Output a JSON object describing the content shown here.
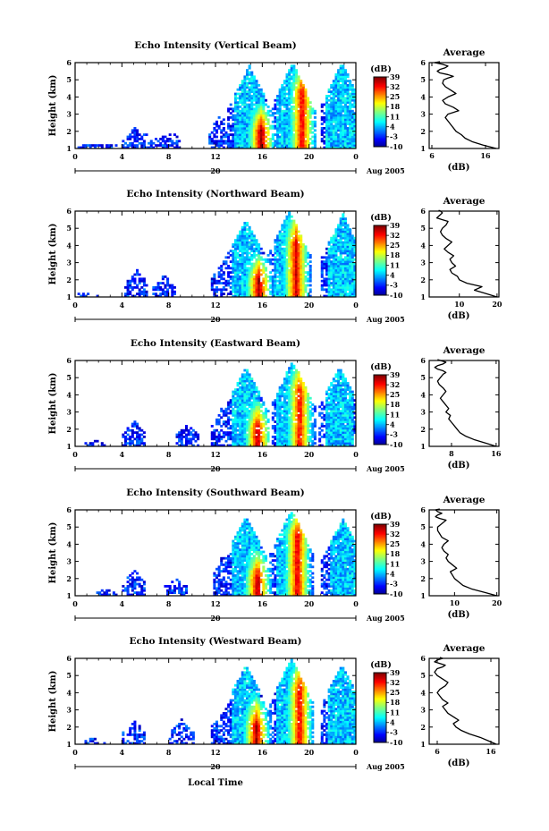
{
  "figure": {
    "xlabel": "Local Time",
    "date_label": "Aug 2005",
    "day_label": "20",
    "time_ticks": [
      "0",
      "4",
      "8",
      "12",
      "16",
      "20",
      "0"
    ],
    "height_ticks": [
      "1",
      "2",
      "3",
      "4",
      "5",
      "6"
    ],
    "ylabel": "Height (km)",
    "cbar_unit": "(dB)",
    "cbar_ticks": [
      "-10",
      "-3",
      "4",
      "11",
      "18",
      "25",
      "32",
      "39"
    ],
    "avg_title": "Average",
    "avg_xlabel": "(dB)"
  },
  "chart_data": [
    {
      "type": "heatmap",
      "title": "Echo Intensity (Vertical Beam)",
      "xlim": [
        0,
        24
      ],
      "ylim": [
        1,
        6
      ],
      "clim": [
        -10,
        39
      ],
      "bursts": [
        [
          0.5,
          1.25
        ],
        [
          2.5,
          1.25
        ],
        [
          5.0,
          2.2
        ],
        [
          6.0,
          1.9
        ],
        [
          8.0,
          2.0
        ],
        [
          12.3,
          3.0
        ],
        [
          14.8,
          5.8
        ],
        [
          18.5,
          6.0
        ],
        [
          22.7,
          6.0
        ]
      ],
      "cores": [
        [
          15.8,
          2.0,
          3.5,
          38
        ],
        [
          19.3,
          4.2,
          6.0,
          34
        ]
      ]
    },
    {
      "type": "heatmap",
      "title": "Echo Intensity (Northward Beam)",
      "xlim": [
        0,
        24
      ],
      "ylim": [
        1,
        6
      ],
      "clim": [
        -10,
        39
      ],
      "bursts": [
        [
          0.8,
          1.2
        ],
        [
          5.2,
          2.6
        ],
        [
          7.5,
          2.2
        ],
        [
          12.5,
          3.2
        ],
        [
          14.5,
          5.5
        ],
        [
          18.2,
          6.0
        ],
        [
          22.8,
          5.8
        ]
      ],
      "cores": [
        [
          15.6,
          2.0,
          3.4,
          37
        ],
        [
          18.8,
          4.0,
          6.0,
          35
        ]
      ]
    },
    {
      "type": "heatmap",
      "title": "Echo Intensity (Eastward Beam)",
      "xlim": [
        0,
        24
      ],
      "ylim": [
        1,
        6
      ],
      "clim": [
        -10,
        39
      ],
      "bursts": [
        [
          1.5,
          1.3
        ],
        [
          5.0,
          2.5
        ],
        [
          9.5,
          2.3
        ],
        [
          12.5,
          3.3
        ],
        [
          14.5,
          5.6
        ],
        [
          18.5,
          6.0
        ],
        [
          22.5,
          5.6
        ]
      ],
      "cores": [
        [
          15.5,
          2.0,
          3.5,
          37
        ],
        [
          19.1,
          4.2,
          6.0,
          33
        ]
      ]
    },
    {
      "type": "heatmap",
      "title": "Echo Intensity (Southward Beam)",
      "xlim": [
        0,
        24
      ],
      "ylim": [
        1,
        6
      ],
      "clim": [
        -10,
        39
      ],
      "bursts": [
        [
          2.5,
          1.3
        ],
        [
          5.0,
          2.5
        ],
        [
          8.5,
          2.0
        ],
        [
          12.6,
          3.4
        ],
        [
          14.5,
          5.6
        ],
        [
          18.4,
          6.0
        ],
        [
          22.8,
          5.4
        ]
      ],
      "cores": [
        [
          15.5,
          2.0,
          3.6,
          37
        ],
        [
          18.9,
          4.5,
          6.0,
          35
        ]
      ]
    },
    {
      "type": "heatmap",
      "title": "Echo Intensity (Westward Beam)",
      "xlim": [
        0,
        24
      ],
      "ylim": [
        1,
        6
      ],
      "clim": [
        -10,
        39
      ],
      "bursts": [
        [
          1.5,
          1.3
        ],
        [
          5.0,
          2.4
        ],
        [
          9.0,
          2.4
        ],
        [
          12.5,
          3.0
        ],
        [
          14.5,
          5.6
        ],
        [
          18.4,
          6.0
        ],
        [
          22.7,
          5.6
        ]
      ],
      "cores": [
        [
          15.4,
          2.0,
          3.7,
          37
        ],
        [
          19.1,
          4.2,
          6.0,
          34
        ]
      ]
    },
    {
      "type": "line",
      "title": "Average",
      "beam": "Vertical",
      "xlabel": "(dB)",
      "xlim": [
        5.5,
        18.5
      ],
      "ylim": [
        1,
        6
      ],
      "xticks": [
        {
          "v": 6,
          "label": "6"
        },
        {
          "v": 16,
          "label": "16"
        }
      ],
      "x": [
        18.0,
        15.5,
        13.5,
        12.2,
        11.5,
        10.5,
        10.0,
        9.5,
        9.0,
        8.5,
        9.0,
        11.0,
        10.0,
        8.5,
        8.0,
        9.0,
        10.5,
        9.5,
        8.5,
        8.0,
        8.2,
        9.0,
        10.0,
        9.0,
        7.5,
        7.0,
        7.5,
        8.5,
        9.0,
        8.0,
        6.5,
        7.5
      ],
      "y": [
        1.0,
        1.2,
        1.4,
        1.6,
        1.8,
        2.0,
        2.2,
        2.4,
        2.6,
        2.8,
        3.0,
        3.2,
        3.4,
        3.6,
        3.8,
        4.0,
        4.2,
        4.4,
        4.6,
        4.8,
        5.0,
        5.1,
        5.2,
        5.3,
        5.4,
        5.5,
        5.6,
        5.7,
        5.8,
        5.9,
        6.0,
        6.05
      ]
    },
    {
      "type": "line",
      "title": "Average",
      "beam": "Northward",
      "xlabel": "(dB)",
      "xlim": [
        2,
        20.5
      ],
      "ylim": [
        1,
        6
      ],
      "xticks": [
        {
          "v": 10,
          "label": "10"
        },
        {
          "v": 20,
          "label": "20"
        }
      ],
      "x": [
        20.0,
        17.0,
        14.0,
        16.0,
        12.0,
        10.0,
        9.5,
        8.0,
        7.5,
        9.0,
        8.0,
        7.5,
        8.5,
        7.0,
        6.0,
        7.0,
        8.0,
        6.5,
        5.5,
        5.0,
        5.5,
        6.5,
        7.0,
        5.5,
        4.0,
        4.5,
        5.0,
        5.5,
        5.0,
        4.5
      ],
      "y": [
        1.0,
        1.2,
        1.4,
        1.6,
        1.8,
        2.0,
        2.2,
        2.4,
        2.6,
        2.8,
        3.0,
        3.2,
        3.4,
        3.6,
        3.8,
        4.0,
        4.2,
        4.4,
        4.6,
        4.8,
        5.0,
        5.2,
        5.4,
        5.5,
        5.6,
        5.7,
        5.8,
        5.9,
        6.0,
        6.05
      ]
    },
    {
      "type": "line",
      "title": "Average",
      "beam": "Eastward",
      "xlabel": "(dB)",
      "xlim": [
        4,
        16.5
      ],
      "ylim": [
        1,
        6
      ],
      "xticks": [
        {
          "v": 8,
          "label": "8"
        },
        {
          "v": 16,
          "label": "16"
        }
      ],
      "x": [
        16.0,
        14.0,
        12.0,
        10.5,
        9.5,
        9.0,
        8.5,
        8.0,
        7.5,
        7.8,
        7.0,
        7.5,
        7.0,
        6.5,
        6.0,
        6.5,
        7.0,
        6.5,
        5.8,
        5.5,
        6.0,
        6.5,
        7.0,
        6.5,
        5.5,
        5.0,
        5.5,
        6.5,
        7.0,
        6.0,
        5.5
      ],
      "y": [
        1.0,
        1.2,
        1.4,
        1.6,
        1.8,
        2.0,
        2.2,
        2.4,
        2.6,
        2.8,
        3.0,
        3.2,
        3.4,
        3.6,
        3.8,
        4.0,
        4.2,
        4.4,
        4.6,
        4.8,
        5.0,
        5.2,
        5.3,
        5.4,
        5.5,
        5.6,
        5.7,
        5.8,
        5.9,
        6.0,
        6.05
      ]
    },
    {
      "type": "line",
      "title": "Average",
      "beam": "Southward",
      "xlabel": "(dB)",
      "xlim": [
        4,
        20.5
      ],
      "ylim": [
        1,
        6
      ],
      "xticks": [
        {
          "v": 10,
          "label": "10"
        },
        {
          "v": 20,
          "label": "20"
        }
      ],
      "x": [
        20.0,
        17.0,
        14.0,
        12.0,
        11.0,
        10.0,
        9.5,
        9.0,
        10.5,
        9.5,
        8.5,
        8.0,
        8.5,
        7.5,
        7.0,
        7.5,
        8.5,
        7.0,
        6.5,
        6.0,
        6.0,
        7.0,
        8.0,
        6.5,
        5.5,
        6.0,
        7.0,
        6.0,
        5.5,
        6.5
      ],
      "y": [
        1.0,
        1.2,
        1.4,
        1.6,
        1.8,
        2.0,
        2.2,
        2.4,
        2.6,
        2.8,
        3.0,
        3.2,
        3.4,
        3.6,
        3.8,
        4.0,
        4.2,
        4.4,
        4.6,
        4.8,
        5.0,
        5.2,
        5.4,
        5.5,
        5.6,
        5.7,
        5.8,
        5.9,
        6.0,
        6.05
      ]
    },
    {
      "type": "line",
      "title": "Average",
      "beam": "Westward",
      "xlabel": "(dB)",
      "xlim": [
        4.5,
        17.5
      ],
      "ylim": [
        1,
        6
      ],
      "xticks": [
        {
          "v": 6,
          "label": "6"
        },
        {
          "v": 16,
          "label": "16"
        }
      ],
      "x": [
        17.0,
        15.5,
        14.0,
        12.0,
        10.5,
        9.5,
        9.0,
        10.0,
        9.0,
        8.0,
        7.5,
        7.0,
        8.0,
        7.0,
        6.5,
        6.0,
        6.5,
        7.5,
        8.0,
        7.0,
        6.0,
        5.5,
        6.0,
        7.0,
        7.5,
        6.5,
        5.5,
        6.0,
        7.0,
        6.5
      ],
      "y": [
        1.0,
        1.2,
        1.4,
        1.6,
        1.8,
        2.0,
        2.2,
        2.4,
        2.6,
        2.8,
        3.0,
        3.2,
        3.4,
        3.6,
        3.8,
        4.0,
        4.2,
        4.4,
        4.6,
        4.8,
        5.0,
        5.2,
        5.4,
        5.5,
        5.6,
        5.7,
        5.8,
        5.9,
        6.0,
        6.05
      ]
    }
  ]
}
